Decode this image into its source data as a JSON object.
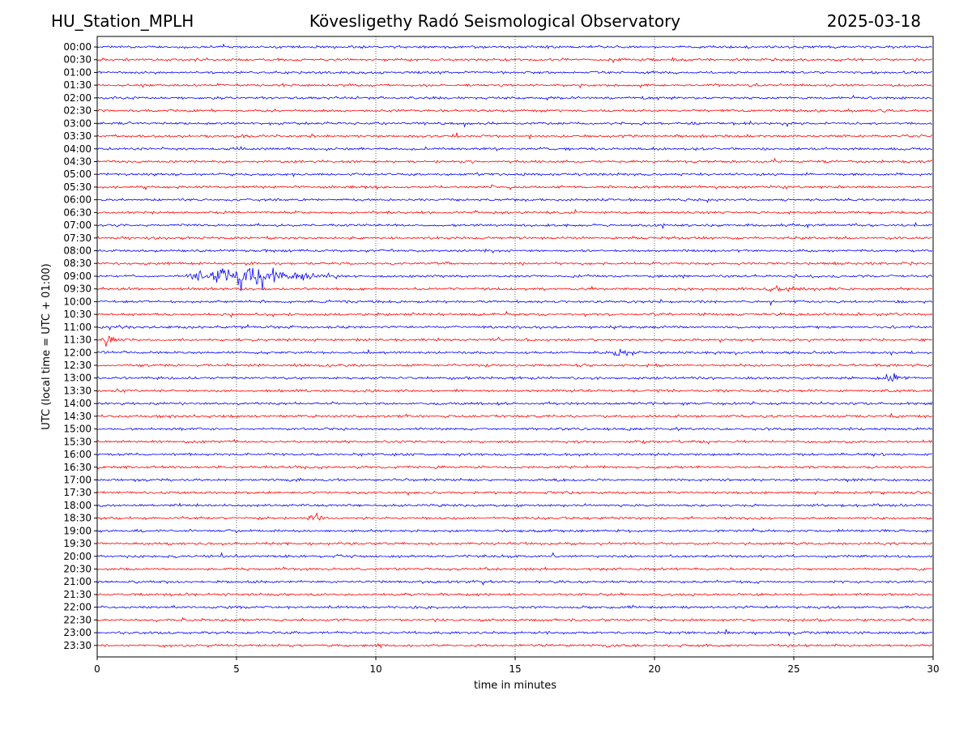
{
  "header": {
    "station": "HU_Station_MPLH",
    "observatory": "Kövesligethy Radó Seismological Observatory",
    "date": "2025-03-18"
  },
  "chart_data": {
    "type": "line",
    "title": "Kövesligethy Radó Seismological Observatory",
    "xlabel": "time in minutes",
    "ylabel": "UTC (local time = UTC + 01:00)",
    "xlim": [
      0,
      30
    ],
    "x_ticks": [
      0,
      5,
      10,
      15,
      20,
      25,
      30
    ],
    "grid": "vertical dotted",
    "row_labels": [
      "00:00",
      "00:30",
      "01:00",
      "01:30",
      "02:00",
      "02:30",
      "03:00",
      "03:30",
      "04:00",
      "04:30",
      "05:00",
      "05:30",
      "06:00",
      "06:30",
      "07:00",
      "07:30",
      "08:00",
      "08:30",
      "09:00",
      "09:30",
      "10:00",
      "10:30",
      "11:00",
      "11:30",
      "12:00",
      "12:30",
      "13:00",
      "13:30",
      "14:00",
      "14:30",
      "15:00",
      "15:30",
      "16:00",
      "16:30",
      "17:00",
      "17:30",
      "18:00",
      "18:30",
      "19:00",
      "19:30",
      "20:00",
      "20:30",
      "21:00",
      "21:30",
      "22:00",
      "22:30",
      "23:00",
      "23:30"
    ],
    "trace_colors": [
      "#0000ff",
      "#ff0000"
    ],
    "noise_amplitude": 1,
    "events": [
      {
        "row": "09:00",
        "start_min": 3.2,
        "end_min": 7.2,
        "peak_min": 5.5,
        "amplitude": 8,
        "tail_end_min": 9.0
      },
      {
        "row": "09:30",
        "start_min": 24.0,
        "end_min": 25.0,
        "peak_min": 24.3,
        "amplitude": 2.2,
        "tail_end_min": 26.5
      },
      {
        "row": "11:30",
        "start_min": 0.0,
        "end_min": 0.5,
        "peak_min": 0.3,
        "amplitude": 5,
        "tail_end_min": 0.8
      },
      {
        "row": "12:00",
        "start_min": 18.5,
        "end_min": 19.0,
        "peak_min": 18.6,
        "amplitude": 4,
        "tail_end_min": 19.6
      },
      {
        "row": "12:30",
        "start_min": 8.2,
        "end_min": 8.5,
        "peak_min": 8.3,
        "amplitude": 1.5,
        "tail_end_min": 8.6
      },
      {
        "row": "13:00",
        "start_min": 28.2,
        "end_min": 28.7,
        "peak_min": 28.4,
        "amplitude": 3.5,
        "tail_end_min": 29.5
      },
      {
        "row": "18:30",
        "start_min": 7.5,
        "end_min": 8.0,
        "peak_min": 7.8,
        "amplitude": 4.5,
        "tail_end_min": 8.2
      }
    ]
  }
}
